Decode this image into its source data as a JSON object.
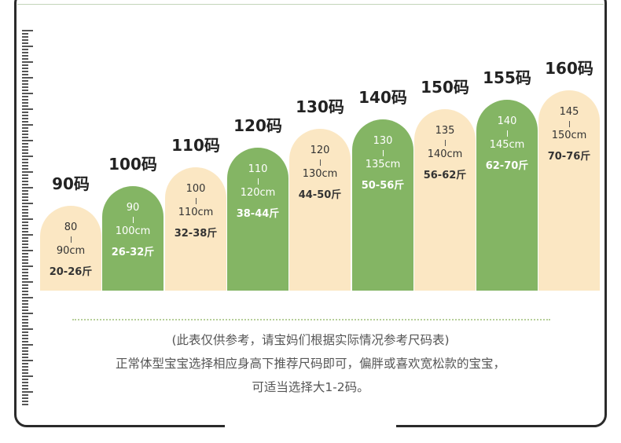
{
  "chart_data": {
    "type": "bar",
    "categories": [
      "90码",
      "100码",
      "110码",
      "120码",
      "130码",
      "140码",
      "150码",
      "155码",
      "160码"
    ],
    "height_range_low": [
      "80",
      "90",
      "100",
      "110",
      "120",
      "130",
      "135",
      "140",
      "145"
    ],
    "height_range_high": [
      "90cm",
      "100cm",
      "110cm",
      "120cm",
      "130cm",
      "135cm",
      "140cm",
      "145cm",
      "150cm"
    ],
    "weight_range": [
      "20-26斤",
      "26-32斤",
      "32-38斤",
      "38-44斤",
      "44-50斤",
      "50-56斤",
      "56-62斤",
      "62-70斤",
      "70-76斤"
    ],
    "values": [
      90,
      100,
      110,
      120,
      130,
      135,
      140,
      145,
      150
    ],
    "units": "cm",
    "ylim": [
      50,
      155
    ],
    "bar_fill": [
      "cream",
      "green",
      "cream",
      "green",
      "cream",
      "green",
      "cream",
      "green",
      "cream"
    ]
  },
  "colors": {
    "cream": "#fbe7c3",
    "green": "#84b564",
    "frame": "#2a2a2a",
    "ruler": "#555555",
    "dots": "#b7cf9a"
  },
  "notes": {
    "line1": "(此表仅供参考，请宝妈们根据实际情况参考尺码表)",
    "line2": "正常体型宝宝选择相应身高下推荐尺码即可，偏胖或喜欢宽松款的宝宝，",
    "line3": "可适当选择大1-2码。"
  }
}
